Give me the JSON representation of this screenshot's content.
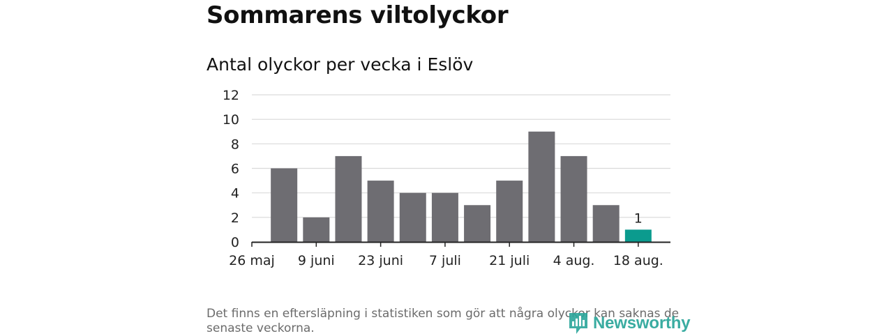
{
  "page": {
    "title": "Sommarens viltolyckor",
    "footnote": "Det finns en eftersläpning i statistiken som gör att några olyckor kan saknas de senaste veckorna.",
    "brand": "Newsworthy"
  },
  "colors": {
    "bar": "#6e6d72",
    "highlight": "#0b9b8e",
    "grid": "#d9d9d9",
    "axis": "#222222",
    "brand": "#2aa59a"
  },
  "chart_data": {
    "type": "bar",
    "subtitle": "Antal olyckor per vecka i Eslöv",
    "x_tick_labels": [
      "26 maj",
      "9 juni",
      "23 juni",
      "7 juli",
      "21 juli",
      "4 aug.",
      "18 aug."
    ],
    "values": [
      6,
      2,
      7,
      5,
      4,
      4,
      3,
      5,
      9,
      7,
      3,
      1
    ],
    "highlight_index": 11,
    "highlight_label": "1",
    "ylim": [
      0,
      12
    ],
    "yticks": [
      "0",
      "2",
      "4",
      "6",
      "8",
      "10",
      "12"
    ],
    "grid": true
  }
}
